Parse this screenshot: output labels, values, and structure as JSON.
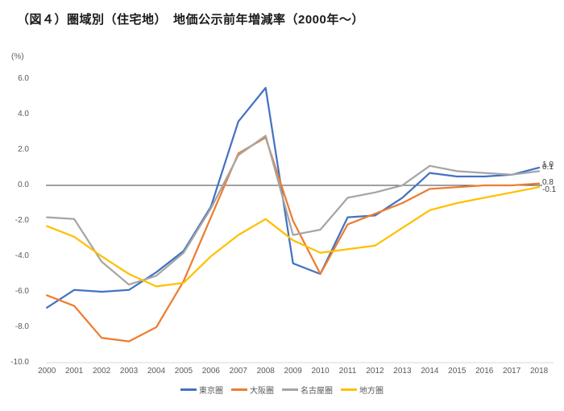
{
  "title": "（図４）圏域別（住宅地）　地価公示前年増減率（2000年～）",
  "chart_data": {
    "type": "line",
    "title": "（図４）圏域別（住宅地）　地価公示前年増減率（2000年～）",
    "unit_label": "(%)",
    "x": [
      2000,
      2001,
      2002,
      2003,
      2004,
      2005,
      2006,
      2007,
      2008,
      2009,
      2010,
      2011,
      2012,
      2013,
      2014,
      2015,
      2016,
      2017,
      2018
    ],
    "y_ticks": [
      "6.0",
      "4.0",
      "2.0",
      "0.0",
      "-2.0",
      "-4.0",
      "-6.0",
      "-8.0",
      "-10.0"
    ],
    "ylim": [
      -10.0,
      6.0
    ],
    "grid": "zero-baseline-and-bottom-border-only",
    "legend_position": "bottom-center",
    "axis_text_color": "#595959",
    "zero_line_color": "#404040",
    "bottom_border_color": "#d9d9d9",
    "series": [
      {
        "id": "tokyo",
        "name": "東京圏",
        "color": "#4472C4",
        "values": [
          -6.9,
          -5.9,
          -6.0,
          -5.9,
          -4.9,
          -3.7,
          -1.2,
          3.6,
          5.5,
          -4.4,
          -5.0,
          -1.8,
          -1.7,
          -0.7,
          0.7,
          0.5,
          0.5,
          0.6,
          1.0
        ]
      },
      {
        "id": "osaka",
        "name": "大阪圏",
        "color": "#ED7D31",
        "values": [
          -6.2,
          -6.8,
          -8.6,
          -8.8,
          -8.0,
          -5.4,
          -1.8,
          1.8,
          2.7,
          -2.0,
          -5.0,
          -2.2,
          -1.6,
          -1.0,
          -0.2,
          -0.1,
          0.0,
          0.0,
          0.1
        ]
      },
      {
        "id": "nagoya",
        "name": "名古屋圏",
        "color": "#A5A5A5",
        "values": [
          -1.8,
          -1.9,
          -4.3,
          -5.6,
          -5.1,
          -3.8,
          -1.3,
          1.7,
          2.8,
          -2.8,
          -2.5,
          -0.7,
          -0.4,
          0.0,
          1.1,
          0.8,
          0.7,
          0.6,
          0.8
        ]
      },
      {
        "id": "chihou",
        "name": "地方圏",
        "color": "#FFC000",
        "values": [
          -2.3,
          -2.9,
          -4.0,
          -5.0,
          -5.7,
          -5.5,
          -4.0,
          -2.8,
          -1.9,
          -3.1,
          -3.8,
          -3.6,
          -3.4,
          -2.4,
          -1.4,
          -1.0,
          -0.7,
          -0.4,
          -0.1
        ]
      }
    ],
    "end_labels": [
      "1.0",
      "0.8",
      "0.1",
      "-0.1"
    ]
  }
}
